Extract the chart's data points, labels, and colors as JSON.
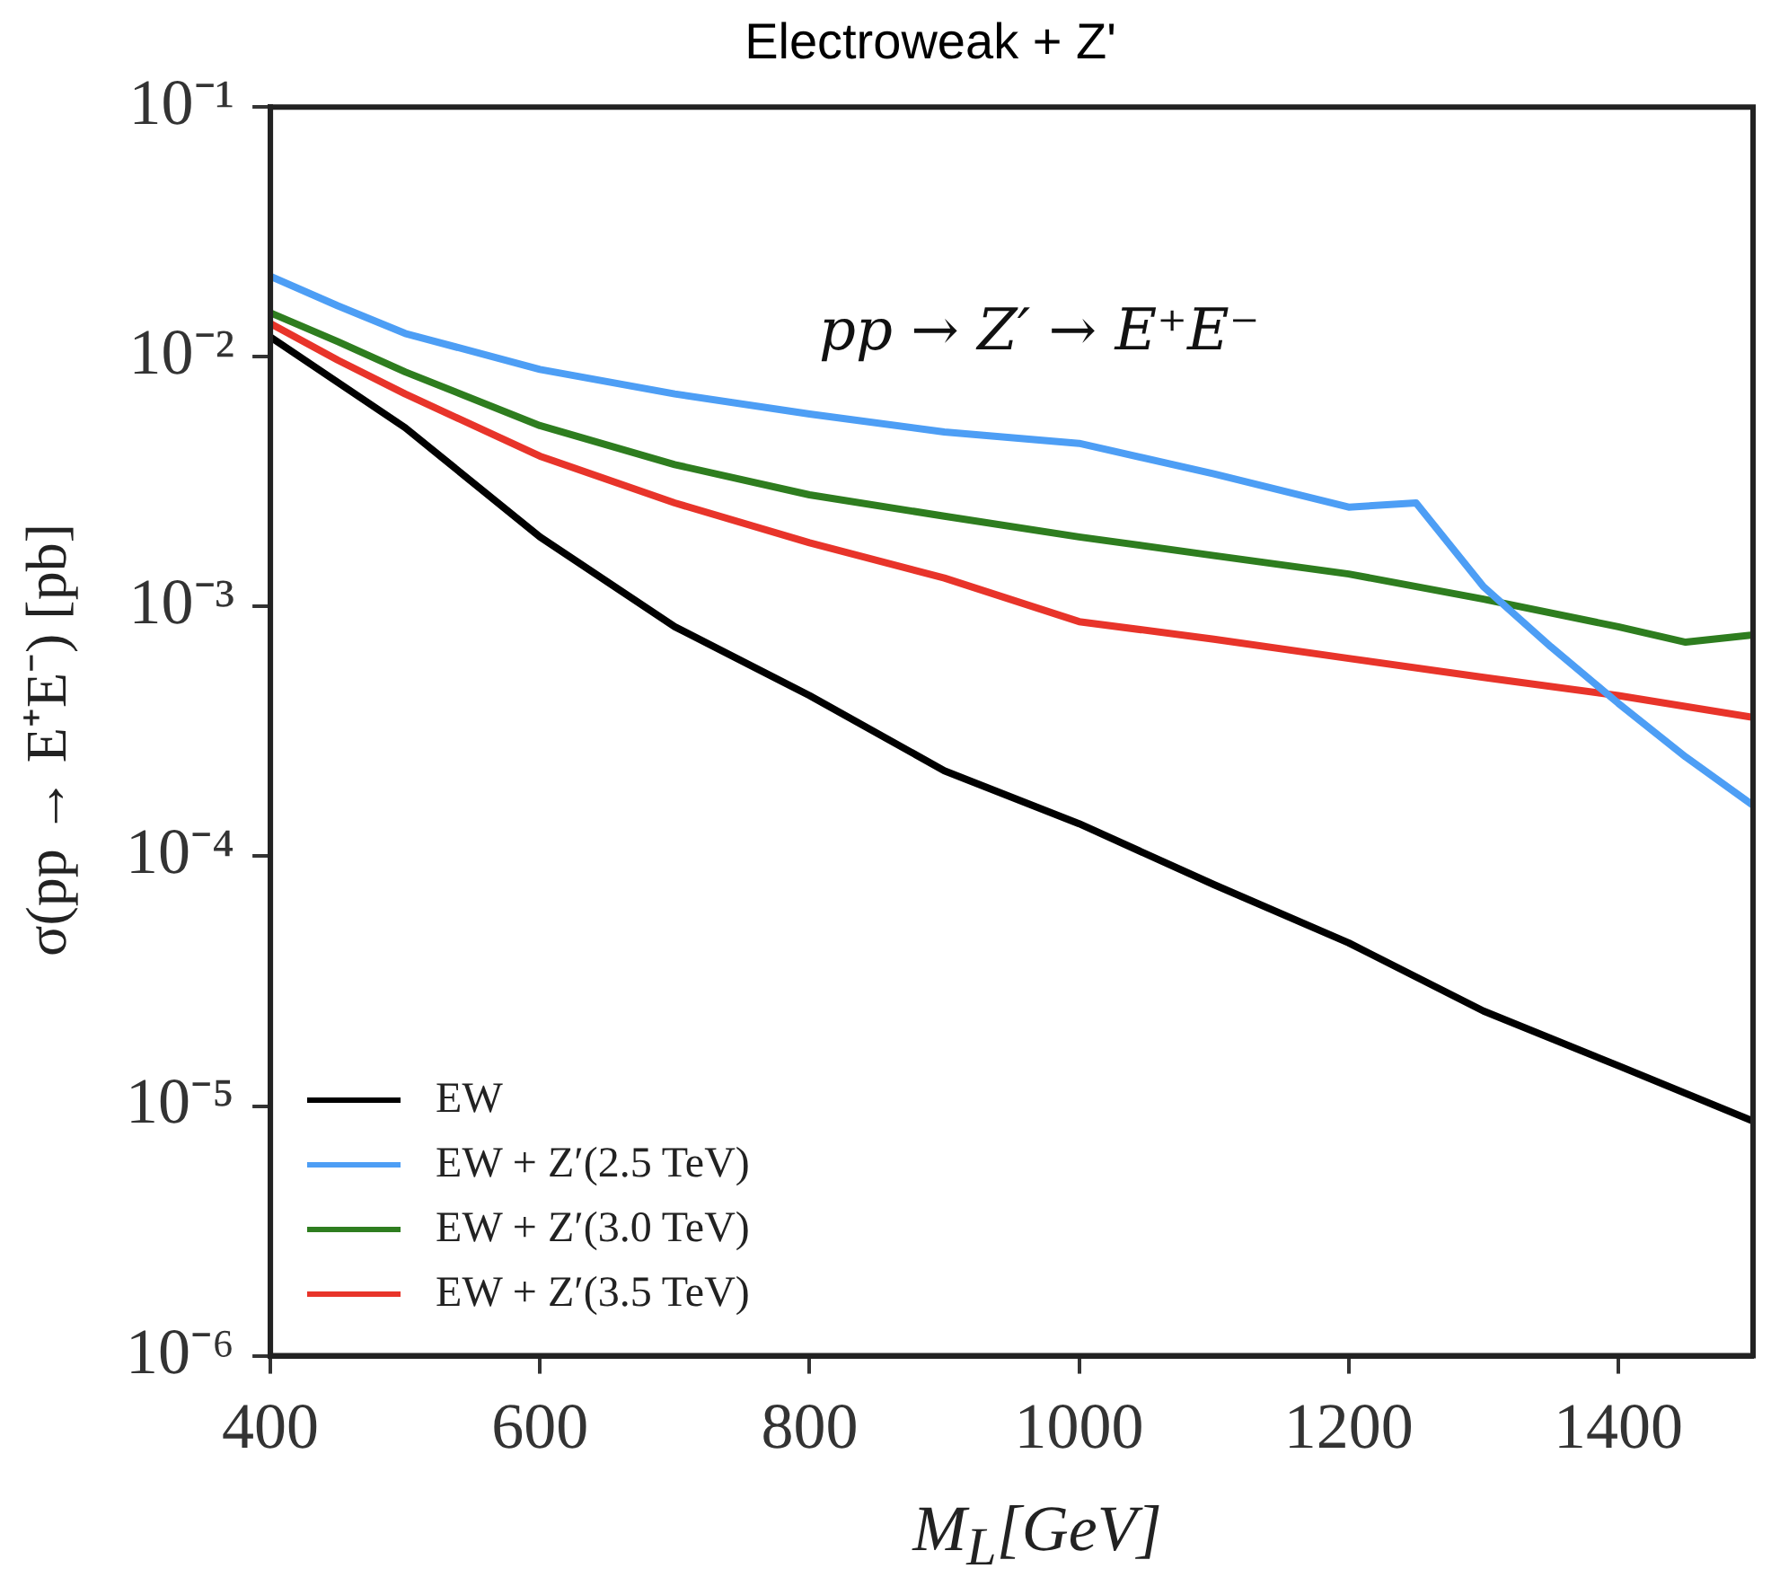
{
  "chart_data": {
    "type": "line",
    "title": "Electroweak + Z'",
    "xlabel": "M$_{L}$[GeV]",
    "ylabel": "σ(pp → E⁺E⁻) [pb]",
    "annotations": [
      "pp → Z′ → E⁺E⁻"
    ],
    "series": [
      {
        "name": "EW",
        "color": "#000000",
        "x": [
          400,
          500,
          600,
          700,
          800,
          900,
          1000,
          1100,
          1200,
          1300,
          1400,
          1500
        ],
        "values": [
          0.012,
          0.0052,
          0.0019,
          0.00083,
          0.00044,
          0.00022,
          0.000135,
          7.7e-05,
          4.5e-05,
          2.4e-05,
          1.45e-05,
          8.7e-06
        ]
      },
      {
        "name": "EW + Z′(2.5 TeV)",
        "color": "#4d9ef5",
        "x": [
          400,
          450,
          500,
          600,
          700,
          800,
          900,
          1000,
          1100,
          1200,
          1250,
          1300,
          1350,
          1400,
          1450,
          1500
        ],
        "values": [
          0.021,
          0.016,
          0.0124,
          0.0089,
          0.0071,
          0.0059,
          0.005,
          0.0045,
          0.0034,
          0.0025,
          0.0026,
          0.0012,
          0.00069,
          0.00041,
          0.00025,
          0.00016
        ]
      },
      {
        "name": "EW + Z′(3.0 TeV)",
        "color": "#2e7d1f",
        "x": [
          400,
          450,
          500,
          600,
          700,
          800,
          900,
          1000,
          1100,
          1200,
          1300,
          1400,
          1450,
          1500
        ],
        "values": [
          0.015,
          0.0115,
          0.0087,
          0.0053,
          0.0037,
          0.0028,
          0.0023,
          0.0019,
          0.0016,
          0.00135,
          0.00107,
          0.00083,
          0.00072,
          0.00077
        ]
      },
      {
        "name": "EW + Z′(3.5 TeV)",
        "color": "#e8342a",
        "x": [
          400,
          450,
          500,
          600,
          700,
          800,
          900,
          1000,
          1100,
          1200,
          1300,
          1400,
          1500
        ],
        "values": [
          0.0136,
          0.0097,
          0.0071,
          0.004,
          0.0026,
          0.0018,
          0.0013,
          0.00087,
          0.00074,
          0.00062,
          0.00052,
          0.00044,
          0.00036
        ]
      }
    ],
    "log": "y",
    "xlim": [
      400,
      1500
    ],
    "xticks": [
      400,
      600,
      800,
      1000,
      1200,
      1400
    ],
    "ylim": [
      1e-06,
      0.1
    ],
    "yticks": [
      {
        "value": 1e-06,
        "label": "10⁻⁶"
      },
      {
        "value": 1e-05,
        "label": "10⁻⁵"
      },
      {
        "value": 0.0001,
        "label": "10⁻⁴"
      },
      {
        "value": 0.001,
        "label": "10⁻³"
      },
      {
        "value": 0.01,
        "label": "10⁻²"
      },
      {
        "value": 0.1,
        "label": "10⁻¹"
      }
    ],
    "legend": "bottom left",
    "marker": "none",
    "line_style": "solid",
    "grid": false
  }
}
